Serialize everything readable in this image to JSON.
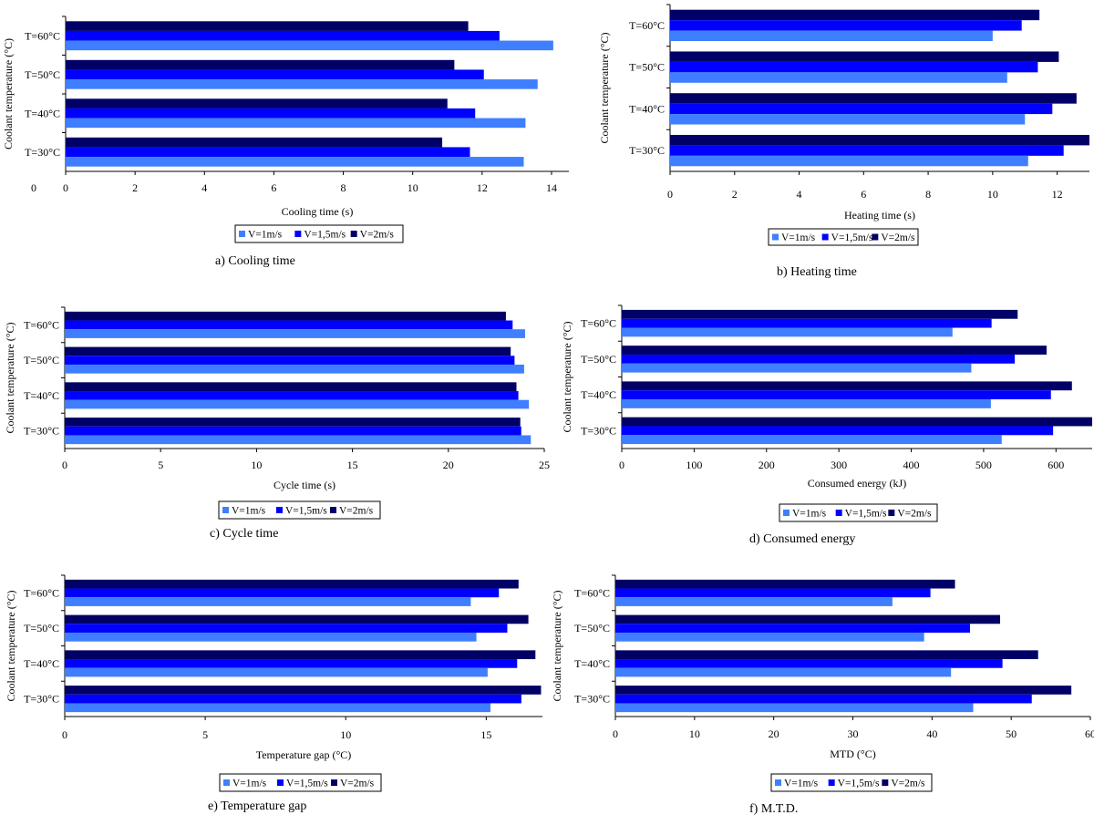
{
  "colors": {
    "V=1m/s": "#3f7fff",
    "V=1,5m/s": "#0000ff",
    "V=2m/s": "#000066"
  },
  "chart_data": [
    {
      "type": "bar",
      "orientation": "horizontal",
      "caption": "a) Cooling time",
      "xlabel": "Cooling time (s)",
      "ylabel": "Coolant temperature (°C)",
      "xlim": [
        0,
        14.5
      ],
      "xticks": [
        "0",
        "2",
        "4",
        "6",
        "8",
        "10",
        "12",
        "14"
      ],
      "extra_tick": "0",
      "categories": [
        "T=30°C",
        "T=40°C",
        "T=50°C",
        "T=60°C"
      ],
      "series": [
        {
          "name": "V=1m/s",
          "values": [
            13.2,
            13.25,
            13.6,
            14.05
          ]
        },
        {
          "name": "V=1,5m/s",
          "values": [
            11.65,
            11.8,
            12.05,
            12.5
          ]
        },
        {
          "name": "V=2m/s",
          "values": [
            10.85,
            11.0,
            11.2,
            11.6
          ]
        }
      ],
      "legend": [
        "V=1m/s",
        "V=1,5m/s",
        "V=2m/s"
      ],
      "grid": false
    },
    {
      "type": "bar",
      "orientation": "horizontal",
      "caption": "b) Heating time",
      "xlabel": "Heating time (s)",
      "ylabel": "Coolant temperature (°C)",
      "xlim": [
        0,
        13
      ],
      "xticks": [
        "0",
        "2",
        "4",
        "6",
        "8",
        "10",
        "12"
      ],
      "categories": [
        "T=30°C",
        "T=40°C",
        "T=50°C",
        "T=60°C"
      ],
      "series": [
        {
          "name": "V=1m/s",
          "values": [
            11.1,
            11.0,
            10.45,
            10.0
          ]
        },
        {
          "name": "V=1,5m/s",
          "values": [
            12.2,
            11.85,
            11.4,
            10.9
          ]
        },
        {
          "name": "V=2m/s",
          "values": [
            13.0,
            12.6,
            12.05,
            11.45
          ]
        }
      ],
      "legend": [
        "V=1m/s",
        "V=1,5m/s",
        "V=2m/s"
      ],
      "grid": false
    },
    {
      "type": "bar",
      "orientation": "horizontal",
      "caption": "c) Cycle time",
      "xlabel": "Cycle time (s)",
      "ylabel": "Coolant temperature (°C)",
      "xlim": [
        0,
        25
      ],
      "xticks": [
        "0",
        "5",
        "10",
        "15",
        "20",
        "25"
      ],
      "categories": [
        "T=30°C",
        "T=40°C",
        "T=50°C",
        "T=60°C"
      ],
      "series": [
        {
          "name": "V=1m/s",
          "values": [
            24.3,
            24.2,
            23.95,
            24.0
          ]
        },
        {
          "name": "V=1,5m/s",
          "values": [
            23.8,
            23.65,
            23.45,
            23.35
          ]
        },
        {
          "name": "V=2m/s",
          "values": [
            23.75,
            23.55,
            23.25,
            23.0
          ]
        }
      ],
      "legend": [
        "V=1m/s",
        "V=1,5m/s",
        "V=2m/s"
      ],
      "grid": false
    },
    {
      "type": "bar",
      "orientation": "horizontal",
      "caption": "d) Consumed energy",
      "xlabel": "Consumed energy (kJ)",
      "ylabel": "Coolant temperature (°C)",
      "xlim": [
        0,
        650
      ],
      "xticks": [
        "0",
        "100",
        "200",
        "300",
        "400",
        "500",
        "600"
      ],
      "categories": [
        "T=30°C",
        "T=40°C",
        "T=50°C",
        "T=60°C"
      ],
      "series": [
        {
          "name": "V=1m/s",
          "values": [
            525,
            510,
            483,
            457
          ]
        },
        {
          "name": "V=1,5m/s",
          "values": [
            596,
            593,
            543,
            511
          ]
        },
        {
          "name": "V=2m/s",
          "values": [
            650,
            622,
            587,
            547
          ]
        }
      ],
      "legend": [
        "V=1m/s",
        "V=1,5m/s",
        "V=2m/s"
      ],
      "grid": false
    },
    {
      "type": "bar",
      "orientation": "horizontal",
      "caption": "e) Temperature gap",
      "xlabel": "Temperature gap (°C)",
      "ylabel": "Coolant temperature (°C)",
      "xlim": [
        0,
        17
      ],
      "xticks": [
        "0",
        "5",
        "10",
        "15"
      ],
      "categories": [
        "T=30°C",
        "T=40°C",
        "T=50°C",
        "T=60°C"
      ],
      "series": [
        {
          "name": "V=1m/s",
          "values": [
            15.15,
            15.05,
            14.65,
            14.45
          ]
        },
        {
          "name": "V=1,5m/s",
          "values": [
            16.25,
            16.1,
            15.75,
            15.45
          ]
        },
        {
          "name": "V=2m/s",
          "values": [
            16.95,
            16.75,
            16.5,
            16.15
          ]
        }
      ],
      "legend": [
        "V=1m/s",
        "V=1,5m/s",
        "V=2m/s"
      ],
      "grid": false
    },
    {
      "type": "bar",
      "orientation": "horizontal",
      "caption": "f) M.T.D.",
      "xlabel": "MTD (°C)",
      "ylabel": "Coolant temperature (°C)",
      "xlim": [
        0,
        60
      ],
      "xticks": [
        "0",
        "10",
        "20",
        "30",
        "40",
        "50",
        "60"
      ],
      "categories": [
        "T=30°C",
        "T=40°C",
        "T=50°C",
        "T=60°C"
      ],
      "series": [
        {
          "name": "V=1m/s",
          "values": [
            45.2,
            42.4,
            39.0,
            35.0
          ]
        },
        {
          "name": "V=1,5m/s",
          "values": [
            52.6,
            48.9,
            44.8,
            39.8
          ]
        },
        {
          "name": "V=2m/s",
          "values": [
            57.6,
            53.4,
            48.6,
            42.9
          ]
        }
      ],
      "legend": [
        "V=1m/s",
        "V=1,5m/s",
        "V=2m/s"
      ],
      "grid": false
    }
  ]
}
